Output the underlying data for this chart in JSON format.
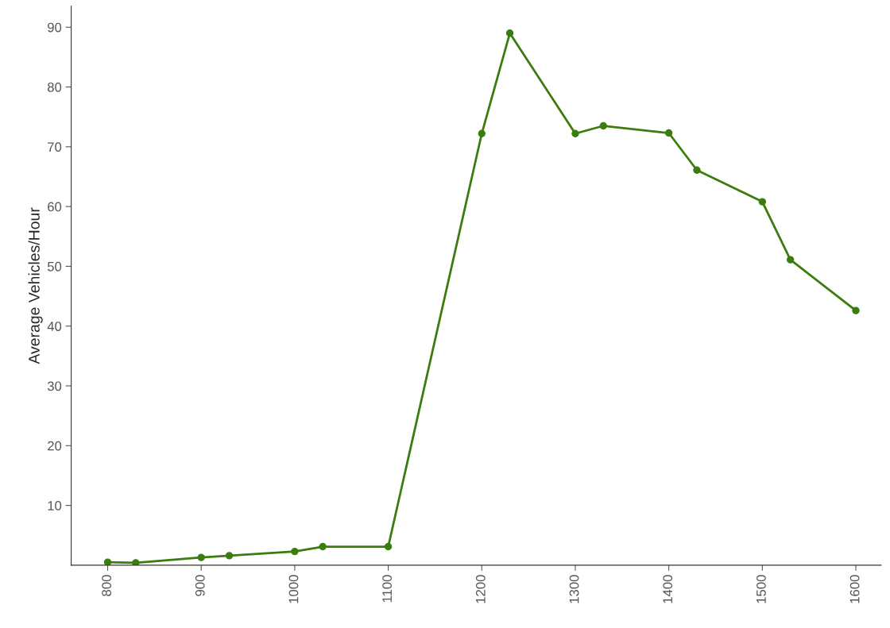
{
  "chart_data": {
    "type": "line",
    "ylabel": "Average Vehicles/Hour",
    "x": [
      800,
      830,
      900,
      930,
      1000,
      1030,
      1100,
      1200,
      1230,
      1300,
      1330,
      1400,
      1430,
      1500,
      1530,
      1600
    ],
    "series": [
      {
        "color": "#3a7d0e",
        "values": [
          0.5,
          0.4,
          1.3,
          1.6,
          2.3,
          3.1,
          3.1,
          72.2,
          89.0,
          72.2,
          73.5,
          72.3,
          66.1,
          60.8,
          51.1,
          42.6
        ]
      }
    ],
    "xlim": [
      761,
      1627
    ],
    "ylim": [
      0,
      93.5
    ],
    "xticks": [
      800,
      900,
      1000,
      1100,
      1200,
      1300,
      1400,
      1500,
      1600
    ],
    "yticks": [
      10,
      20,
      30,
      40,
      50,
      60,
      70,
      80,
      90
    ],
    "grid": false,
    "legend": false,
    "marker": "circle",
    "line_style": "solid"
  }
}
